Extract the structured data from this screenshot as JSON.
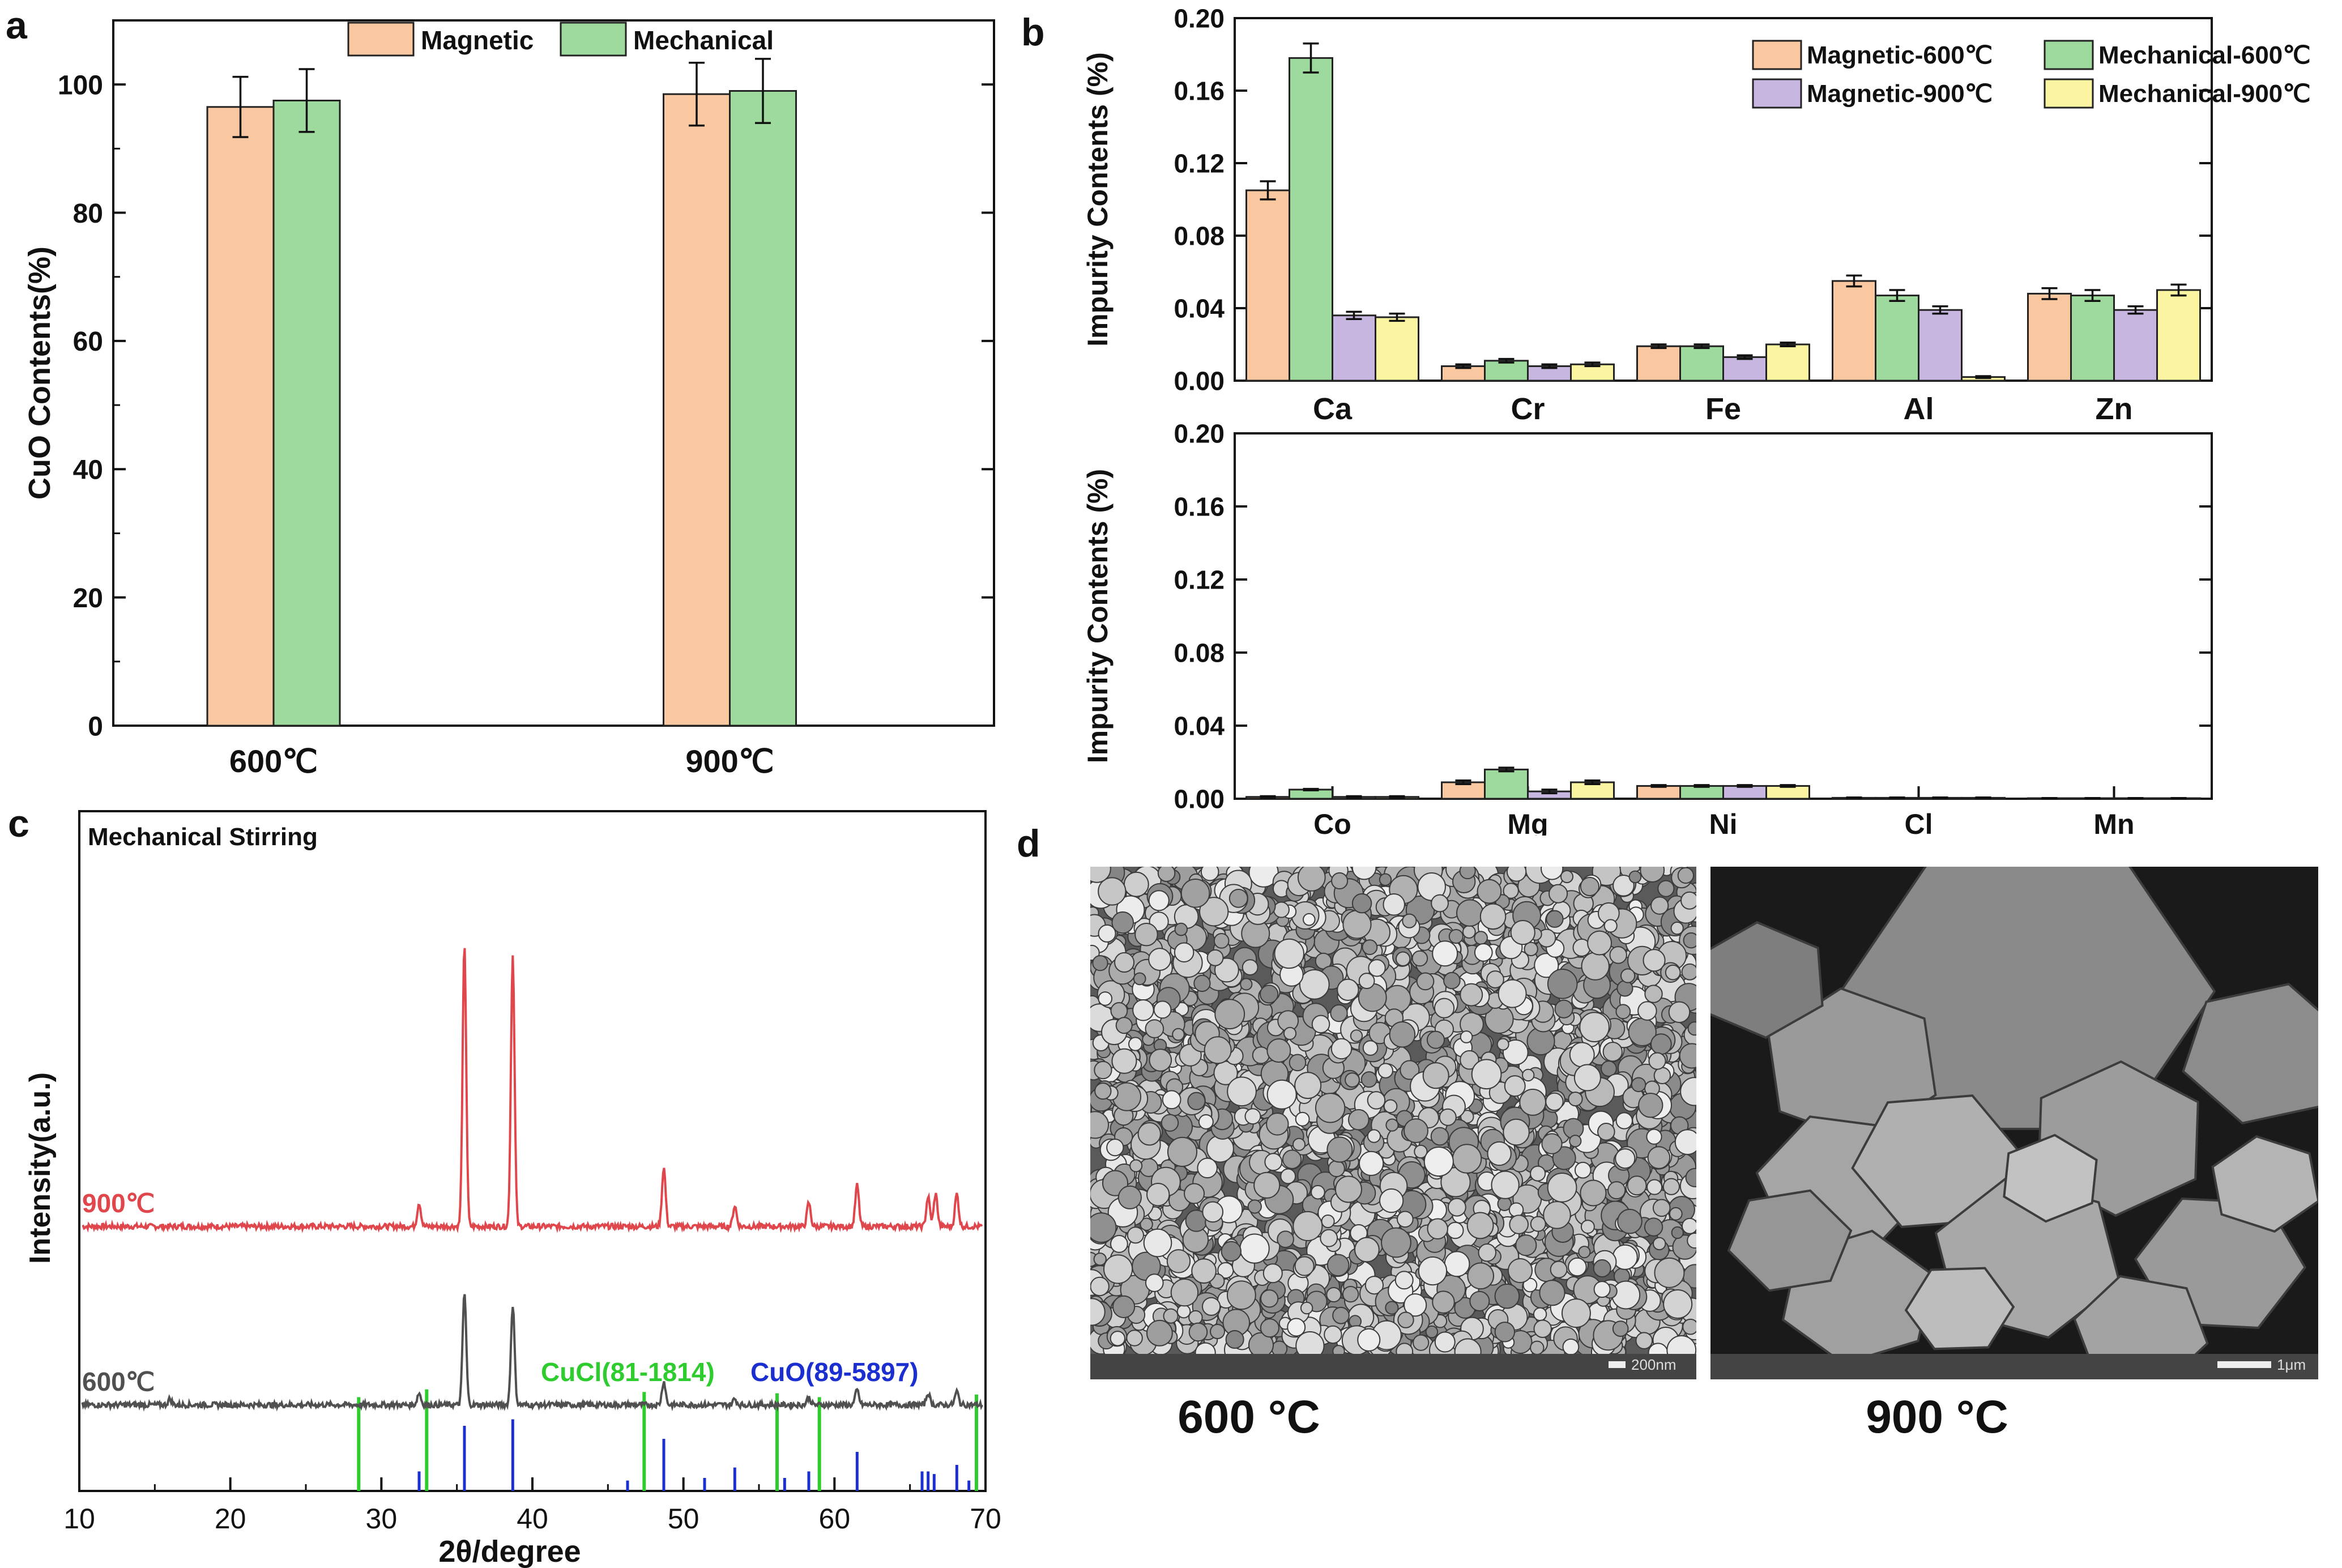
{
  "panels": {
    "a": "a",
    "b": "b",
    "c": "c",
    "d": "d"
  },
  "chart_data": [
    {
      "panel": "a",
      "type": "bar",
      "categories": [
        "600℃",
        "900℃"
      ],
      "series": [
        {
          "name": "Magnetic",
          "color": "#f9c8a0",
          "values": [
            96.5,
            98.5
          ],
          "errors": [
            4.7,
            4.9
          ]
        },
        {
          "name": "Mechanical",
          "color": "#9ed99e",
          "values": [
            97.5,
            99.0
          ],
          "errors": [
            4.9,
            5.0
          ]
        }
      ],
      "ylabel": "CuO Contents(%)",
      "ylim": [
        0,
        110
      ],
      "yticks": [
        0,
        20,
        40,
        60,
        80,
        100
      ],
      "legend": "top-center"
    },
    {
      "panel": "b-top",
      "type": "bar",
      "categories": [
        "Ca",
        "Cr",
        "Fe",
        "Al",
        "Zn"
      ],
      "series": [
        {
          "name": "Magnetic-600℃",
          "color": "#f9c8a0",
          "values": [
            0.105,
            0.008,
            0.019,
            0.055,
            0.048
          ],
          "errors": [
            0.005,
            0.001,
            0.001,
            0.003,
            0.003
          ]
        },
        {
          "name": "Mechanical-600℃",
          "color": "#9ed99e",
          "values": [
            0.178,
            0.011,
            0.019,
            0.047,
            0.047
          ],
          "errors": [
            0.008,
            0.001,
            0.001,
            0.003,
            0.003
          ]
        },
        {
          "name": "Magnetic-900℃",
          "color": "#c6b6e0",
          "values": [
            0.036,
            0.008,
            0.013,
            0.039,
            0.039
          ],
          "errors": [
            0.002,
            0.001,
            0.001,
            0.002,
            0.002
          ]
        },
        {
          "name": "Mechanical-900℃",
          "color": "#fbf5a2",
          "values": [
            0.035,
            0.009,
            0.02,
            0.002,
            0.05
          ],
          "errors": [
            0.002,
            0.001,
            0.001,
            0.0005,
            0.003
          ]
        }
      ],
      "ylabel": "Impurity Contents (%)",
      "ylim": [
        0,
        0.2
      ],
      "yticks": [
        "0.00",
        "0.04",
        "0.08",
        "0.12",
        "0.16",
        "0.20"
      ],
      "legend": "top-right"
    },
    {
      "panel": "b-bottom",
      "type": "bar",
      "categories": [
        "Co",
        "Mg",
        "Ni",
        "Cl",
        "Mn"
      ],
      "series": [
        {
          "name": "Magnetic-600℃",
          "color": "#f9c8a0",
          "values": [
            0.001,
            0.009,
            0.007,
            0.0005,
            0.0003
          ]
        },
        {
          "name": "Mechanical-600℃",
          "color": "#9ed99e",
          "values": [
            0.005,
            0.016,
            0.007,
            0.0005,
            0.0003
          ]
        },
        {
          "name": "Magnetic-900℃",
          "color": "#c6b6e0",
          "values": [
            0.001,
            0.004,
            0.007,
            0.0005,
            0.0003
          ]
        },
        {
          "name": "Mechanical-900℃",
          "color": "#fbf5a2",
          "values": [
            0.001,
            0.009,
            0.007,
            0.0005,
            0.0003
          ]
        }
      ],
      "errors": [
        0.0004,
        0.001,
        0.0005,
        0.0002,
        0.0001
      ],
      "ylabel": "Impurity Contents (%)",
      "ylim": [
        0,
        0.2
      ],
      "yticks": [
        "0.00",
        "0.04",
        "0.08",
        "0.12",
        "0.16",
        "0.20"
      ]
    },
    {
      "panel": "c",
      "type": "line",
      "title": "Mechanical Stirring",
      "xlabel": "2θ/degree",
      "ylabel": "Intensity(a.u.)",
      "xlim": [
        10,
        70
      ],
      "xticks": [
        10,
        20,
        30,
        40,
        50,
        60,
        70
      ],
      "series": [
        {
          "name": "900℃",
          "color": "#e0474c",
          "peaks": [
            [
              32.5,
              0.08
            ],
            [
              35.5,
              0.95
            ],
            [
              38.7,
              0.92
            ],
            [
              48.7,
              0.2
            ],
            [
              53.4,
              0.07
            ],
            [
              58.3,
              0.08
            ],
            [
              61.5,
              0.14
            ],
            [
              66.2,
              0.1
            ],
            [
              66.7,
              0.11
            ],
            [
              68.1,
              0.11
            ]
          ]
        },
        {
          "name": "600℃",
          "color": "#505050",
          "peaks": [
            [
              16.0,
              0.02
            ],
            [
              32.5,
              0.04
            ],
            [
              35.5,
              0.38
            ],
            [
              38.7,
              0.34
            ],
            [
              48.7,
              0.08
            ],
            [
              53.4,
              0.02
            ],
            [
              58.3,
              0.025
            ],
            [
              61.5,
              0.05
            ],
            [
              66.2,
              0.04
            ],
            [
              68.1,
              0.045
            ]
          ]
        }
      ],
      "reference_lines": [
        {
          "name": "CuCl(81-1814)",
          "color": "#2ecc2e",
          "positions": [
            28.5,
            33.0,
            47.4,
            56.2,
            59.0,
            69.4
          ],
          "heights": [
            0.72,
            0.78,
            0.76,
            0.75,
            0.72,
            0.74
          ]
        },
        {
          "name": "CuO(89-5897)",
          "color": "#1b2fd0",
          "positions": [
            32.5,
            35.5,
            38.7,
            46.3,
            48.7,
            51.4,
            53.4,
            56.7,
            58.3,
            61.5,
            65.8,
            66.2,
            66.6,
            68.1,
            68.9
          ],
          "heights": [
            0.15,
            0.5,
            0.55,
            0.08,
            0.4,
            0.1,
            0.18,
            0.1,
            0.15,
            0.3,
            0.15,
            0.15,
            0.13,
            0.2,
            0.08
          ]
        }
      ]
    }
  ],
  "sem": [
    {
      "caption": "600 °C",
      "scalebar": "200nm"
    },
    {
      "caption": "900 °C",
      "scalebar": "1μm"
    }
  ]
}
